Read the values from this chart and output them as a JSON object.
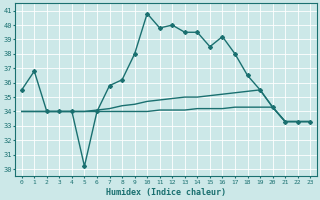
{
  "xlabel": "Humidex (Indice chaleur)",
  "bg_color": "#cce8e8",
  "grid_color": "#b0d8d8",
  "line_color": "#1a7070",
  "xlim": [
    -0.5,
    23.5
  ],
  "ylim": [
    29.5,
    41.5
  ],
  "xticks": [
    0,
    1,
    2,
    3,
    4,
    5,
    6,
    7,
    8,
    9,
    10,
    11,
    12,
    13,
    14,
    15,
    16,
    17,
    18,
    19,
    20,
    21,
    22,
    23
  ],
  "yticks": [
    30,
    31,
    32,
    33,
    34,
    35,
    36,
    37,
    38,
    39,
    40,
    41
  ],
  "series": [
    {
      "x": [
        0,
        1,
        2,
        3,
        4,
        5,
        6,
        7,
        8,
        9,
        10,
        11,
        12,
        13,
        14,
        15,
        16,
        17,
        18,
        19,
        20,
        21,
        22,
        23
      ],
      "y": [
        35.5,
        36.8,
        34.0,
        34.0,
        34.0,
        30.2,
        34.0,
        35.8,
        36.2,
        38.0,
        40.8,
        39.8,
        40.0,
        39.5,
        39.5,
        38.5,
        39.2,
        38.0,
        36.5,
        35.5,
        34.3,
        33.3,
        33.3,
        33.3
      ],
      "marker": "D",
      "lw": 1.0
    },
    {
      "x": [
        0,
        1,
        2,
        3,
        4,
        5,
        6,
        7,
        8,
        9,
        10,
        11,
        12,
        13,
        14,
        15,
        16,
        17,
        18,
        19,
        20,
        21,
        22,
        23
      ],
      "y": [
        34.0,
        34.0,
        34.0,
        34.0,
        34.0,
        34.0,
        34.1,
        34.2,
        34.4,
        34.5,
        34.7,
        34.8,
        34.9,
        35.0,
        35.0,
        35.1,
        35.2,
        35.3,
        35.4,
        35.5,
        34.3,
        33.3,
        33.3,
        33.3
      ],
      "marker": null,
      "lw": 1.0
    },
    {
      "x": [
        0,
        1,
        2,
        3,
        4,
        5,
        6,
        7,
        8,
        9,
        10,
        11,
        12,
        13,
        14,
        15,
        16,
        17,
        18,
        19,
        20,
        21,
        22,
        23
      ],
      "y": [
        34.0,
        34.0,
        34.0,
        34.0,
        34.0,
        34.0,
        34.0,
        34.0,
        34.0,
        34.0,
        34.0,
        34.1,
        34.1,
        34.1,
        34.2,
        34.2,
        34.2,
        34.3,
        34.3,
        34.3,
        34.3,
        33.3,
        33.3,
        33.3
      ],
      "marker": null,
      "lw": 1.0
    }
  ]
}
